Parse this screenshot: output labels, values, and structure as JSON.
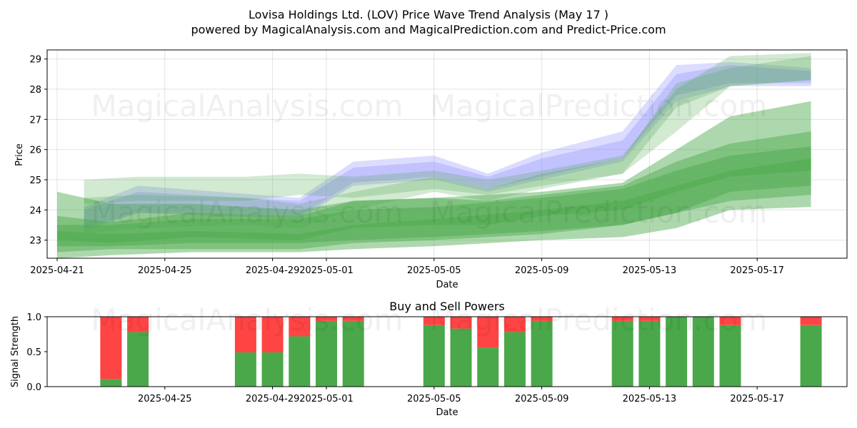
{
  "title_line1": "Lovisa Holdings Ltd. (LOV) Price Wave Trend Analysis (May 17 )",
  "title_line2": "powered by MagicalAnalysis.com and MagicalPrediction.com and Predict-Price.com",
  "watermarks": [
    "MagicalAnalysis.com",
    "MagicalPrediction.com"
  ],
  "colors": {
    "buy": "#4aa84a",
    "sell": "#ff4444",
    "band_green": "#4aa84a",
    "band_blue": "#8080ff"
  },
  "chart_data": [
    {
      "type": "area",
      "name": "price-wave",
      "xlabel": "Date",
      "ylabel": "Price",
      "ylim": [
        22.4,
        29.3
      ],
      "xlim": [
        "2025-04-21",
        "2025-05-20"
      ],
      "x_ticks": [
        "2025-04-21",
        "2025-04-25",
        "2025-04-29",
        "2025-05-01",
        "2025-05-05",
        "2025-05-09",
        "2025-05-13",
        "2025-05-17"
      ],
      "y_ticks": [
        23,
        24,
        25,
        26,
        27,
        28,
        29
      ],
      "grid": true,
      "bands": [
        {
          "color": "blue",
          "x": [
            "2025-04-22",
            "2025-04-24",
            "2025-04-30",
            "2025-05-02",
            "2025-05-05",
            "2025-05-07",
            "2025-05-09",
            "2025-05-12",
            "2025-05-14",
            "2025-05-16",
            "2025-05-19"
          ],
          "upper": [
            24.1,
            24.8,
            24.4,
            25.6,
            25.8,
            25.2,
            25.9,
            26.6,
            28.8,
            28.9,
            28.7
          ],
          "lower": [
            23.3,
            23.9,
            23.7,
            24.8,
            25.0,
            24.6,
            25.0,
            25.6,
            27.6,
            28.1,
            28.1
          ]
        },
        {
          "color": "blue",
          "x": [
            "2025-04-22",
            "2025-04-24",
            "2025-04-30",
            "2025-05-02",
            "2025-05-05",
            "2025-05-07",
            "2025-05-09",
            "2025-05-12",
            "2025-05-14",
            "2025-05-16",
            "2025-05-19"
          ],
          "upper": [
            24.0,
            24.6,
            24.3,
            25.4,
            25.6,
            25.1,
            25.7,
            26.3,
            28.5,
            28.8,
            28.6
          ],
          "lower": [
            23.4,
            23.9,
            23.8,
            24.9,
            25.1,
            24.7,
            25.1,
            25.7,
            27.8,
            28.2,
            28.2
          ]
        },
        {
          "color": "green",
          "x": [
            "2025-04-22",
            "2025-04-24",
            "2025-04-28",
            "2025-04-30",
            "2025-05-02",
            "2025-05-05",
            "2025-05-07",
            "2025-05-09",
            "2025-05-12",
            "2025-05-14",
            "2025-05-16",
            "2025-05-19"
          ],
          "upper": [
            25.0,
            25.1,
            25.1,
            25.2,
            25.1,
            25.3,
            25.0,
            25.3,
            25.8,
            28.0,
            29.1,
            29.2
          ],
          "lower": [
            24.2,
            24.3,
            24.3,
            24.5,
            24.4,
            24.7,
            24.5,
            24.8,
            25.2,
            26.6,
            28.1,
            28.3
          ]
        },
        {
          "color": "green",
          "x": [
            "2025-04-22",
            "2025-04-24",
            "2025-04-28",
            "2025-04-30",
            "2025-05-02",
            "2025-05-05",
            "2025-05-07",
            "2025-05-09",
            "2025-05-12",
            "2025-05-14",
            "2025-05-16",
            "2025-05-19"
          ],
          "upper": [
            24.4,
            24.5,
            24.4,
            24.2,
            24.6,
            25.1,
            24.7,
            25.2,
            25.7,
            28.2,
            28.7,
            29.1
          ],
          "lower": [
            23.2,
            23.4,
            23.5,
            23.4,
            24.0,
            24.6,
            24.3,
            24.7,
            25.2,
            27.4,
            28.1,
            28.3
          ]
        },
        {
          "color": "green",
          "x": [
            "2025-04-21",
            "2025-04-23",
            "2025-04-26",
            "2025-04-30",
            "2025-05-02",
            "2025-05-05",
            "2025-05-09",
            "2025-05-12",
            "2025-05-14",
            "2025-05-16",
            "2025-05-19"
          ],
          "upper": [
            24.6,
            24.2,
            24.2,
            24.0,
            24.3,
            24.4,
            24.6,
            24.9,
            26.0,
            27.1,
            27.6
          ],
          "lower": [
            22.4,
            22.5,
            22.6,
            22.6,
            22.7,
            22.8,
            23.0,
            23.1,
            23.4,
            24.0,
            24.1
          ]
        },
        {
          "color": "green",
          "x": [
            "2025-04-21",
            "2025-04-23",
            "2025-04-26",
            "2025-04-30",
            "2025-05-02",
            "2025-05-05",
            "2025-05-09",
            "2025-05-12",
            "2025-05-14",
            "2025-05-16",
            "2025-05-19"
          ],
          "upper": [
            23.5,
            23.5,
            23.7,
            23.7,
            24.0,
            24.1,
            24.4,
            24.7,
            25.3,
            25.8,
            26.1
          ],
          "lower": [
            22.8,
            22.8,
            22.9,
            22.9,
            23.0,
            23.1,
            23.3,
            23.5,
            23.9,
            24.6,
            24.8
          ]
        },
        {
          "color": "green",
          "x": [
            "2025-04-21",
            "2025-04-23",
            "2025-04-26",
            "2025-04-30",
            "2025-05-02",
            "2025-05-05",
            "2025-05-09",
            "2025-05-12",
            "2025-05-14",
            "2025-05-16",
            "2025-05-19"
          ],
          "upper": [
            23.3,
            23.2,
            23.3,
            23.2,
            23.5,
            23.7,
            24.0,
            24.3,
            24.8,
            25.3,
            25.7
          ],
          "lower": [
            22.6,
            22.7,
            22.7,
            22.7,
            22.9,
            23.0,
            23.2,
            23.5,
            23.9,
            24.3,
            24.5
          ]
        },
        {
          "color": "green",
          "x": [
            "2025-04-21",
            "2025-04-23",
            "2025-04-26",
            "2025-04-30",
            "2025-05-02",
            "2025-05-05",
            "2025-05-07",
            "2025-05-09",
            "2025-05-12",
            "2025-05-14",
            "2025-05-16",
            "2025-05-19"
          ],
          "upper": [
            23.8,
            23.6,
            23.9,
            23.8,
            24.3,
            24.4,
            24.3,
            24.5,
            24.8,
            25.6,
            26.2,
            26.6
          ],
          "lower": [
            23.0,
            22.9,
            23.1,
            23.0,
            23.4,
            23.5,
            23.5,
            23.8,
            24.0,
            24.6,
            25.1,
            25.3
          ]
        }
      ]
    },
    {
      "type": "bar",
      "name": "buy-sell-powers",
      "title": "Buy and Sell Powers",
      "xlabel": "Date",
      "ylabel": "Signal Strength",
      "ylim": [
        0,
        1
      ],
      "y_ticks": [
        "0.0",
        "0.5",
        "1.0"
      ],
      "x_ticks": [
        "2025-04-25",
        "2025-04-29",
        "2025-05-01",
        "2025-05-05",
        "2025-05-09",
        "2025-05-13",
        "2025-05-17"
      ],
      "categories": [
        "2025-04-23",
        "2025-04-24",
        "2025-04-28",
        "2025-04-29",
        "2025-04-30",
        "2025-05-01",
        "2025-05-02",
        "2025-05-05",
        "2025-05-06",
        "2025-05-07",
        "2025-05-08",
        "2025-05-09",
        "2025-05-12",
        "2025-05-13",
        "2025-05-14",
        "2025-05-15",
        "2025-05-16",
        "2025-05-19"
      ],
      "series": [
        {
          "name": "buy",
          "values": [
            0.11,
            0.78,
            0.49,
            0.49,
            0.72,
            0.94,
            0.94,
            0.88,
            0.83,
            0.56,
            0.78,
            0.94,
            0.94,
            0.94,
            1.0,
            1.0,
            0.88,
            0.88
          ]
        },
        {
          "name": "sell",
          "values": [
            0.89,
            0.22,
            0.51,
            0.51,
            0.28,
            0.06,
            0.06,
            0.12,
            0.17,
            0.44,
            0.22,
            0.06,
            0.06,
            0.06,
            0.0,
            0.0,
            0.12,
            0.12
          ]
        }
      ]
    }
  ]
}
